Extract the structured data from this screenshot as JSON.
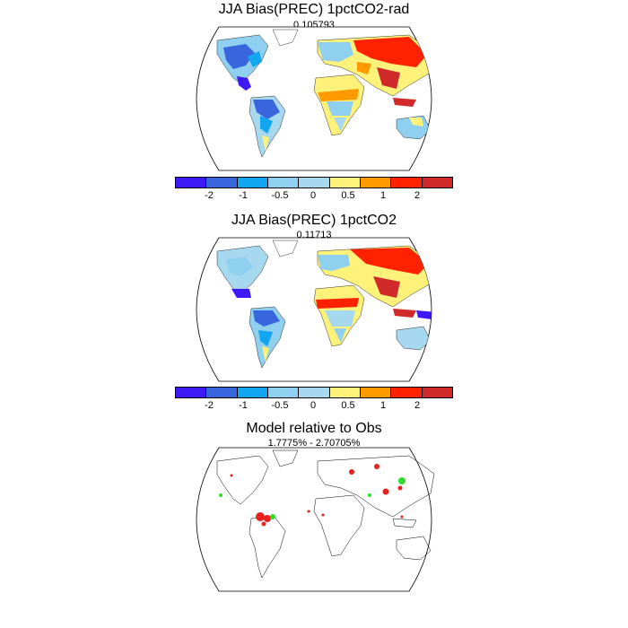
{
  "panels": [
    {
      "title": "JJA Bias(PREC) 1pctCO2-rad",
      "subtitle": "0.105793"
    },
    {
      "title": "JJA Bias(PREC) 1pctCO2",
      "subtitle": "0.11713"
    },
    {
      "title": "Model relative to Obs",
      "subtitle": "1.7775% - 2.70705%"
    }
  ],
  "colorbar": {
    "colors": [
      "#3d1af5",
      "#3a66dd",
      "#12a6f1",
      "#8fcfef",
      "#a6d8f0",
      "#fff27a",
      "#ff9a00",
      "#ff2200",
      "#d12a2a"
    ],
    "tick_labels": [
      "-2",
      "-1",
      "-0.5",
      "0",
      "0.5",
      "1",
      "2"
    ]
  },
  "significance_colors": {
    "positive": "#e8211f",
    "negative": "#2ede2e"
  }
}
